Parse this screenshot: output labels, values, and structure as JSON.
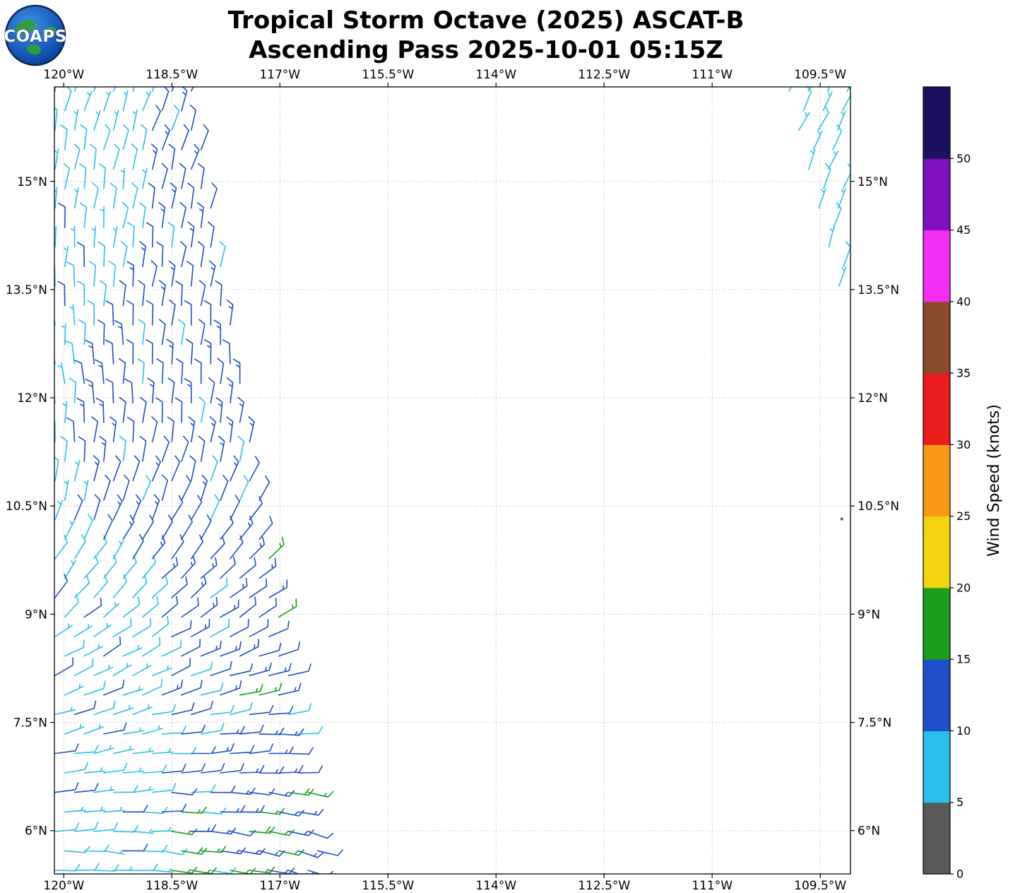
{
  "header": {
    "logo_text": "COAPS",
    "title_line1": "Tropical Storm Octave (2025) ASCAT-B",
    "title_line2": "Ascending Pass 2025-10-01 05:15Z"
  },
  "chart_data": {
    "type": "wind_barb_map",
    "title": "Tropical Storm Octave (2025) ASCAT-B",
    "subtitle": "Ascending Pass 2025-10-01 05:15Z",
    "lon_range": [
      -120.13,
      -109.08
    ],
    "lat_range": [
      5.4,
      16.31
    ],
    "x_ticks": [
      {
        "value": -120.0,
        "label": "120°W"
      },
      {
        "value": -118.5,
        "label": "118.5°W"
      },
      {
        "value": -117.0,
        "label": "117°W"
      },
      {
        "value": -115.5,
        "label": "115.5°W"
      },
      {
        "value": -114.0,
        "label": "114°W"
      },
      {
        "value": -112.5,
        "label": "112.5°W"
      },
      {
        "value": -111.0,
        "label": "111°W"
      },
      {
        "value": -109.5,
        "label": "109.5°W"
      }
    ],
    "y_ticks": [
      {
        "value": 6.0,
        "label": "6°N"
      },
      {
        "value": 7.5,
        "label": "7.5°N"
      },
      {
        "value": 9.0,
        "label": "9°N"
      },
      {
        "value": 10.5,
        "label": "10.5°N"
      },
      {
        "value": 12.0,
        "label": "12°N"
      },
      {
        "value": 13.5,
        "label": "13.5°N"
      },
      {
        "value": 15.0,
        "label": "15°N"
      }
    ],
    "labels_on_both_sides": true,
    "grid": {
      "show": true,
      "color": "#bcbcbc",
      "dash": "1.5 3"
    },
    "colorbar": {
      "label": "Wind Speed (knots)",
      "tick_values": [
        0,
        5,
        10,
        15,
        20,
        25,
        30,
        35,
        40,
        45,
        50
      ],
      "value_max": 55,
      "segments": [
        {
          "range": [
            0,
            5
          ],
          "color": "#595959"
        },
        {
          "range": [
            5,
            10
          ],
          "color": "#29bfec"
        },
        {
          "range": [
            10,
            15
          ],
          "color": "#1d4fc8"
        },
        {
          "range": [
            15,
            20
          ],
          "color": "#1b9e1b"
        },
        {
          "range": [
            20,
            25
          ],
          "color": "#f2d411"
        },
        {
          "range": [
            25,
            30
          ],
          "color": "#f79a17"
        },
        {
          "range": [
            30,
            35
          ],
          "color": "#ea1c1c"
        },
        {
          "range": [
            35,
            40
          ],
          "color": "#8a4a2e"
        },
        {
          "range": [
            40,
            45
          ],
          "color": "#f22ef2"
        },
        {
          "range": [
            45,
            50
          ],
          "color": "#7e10c0"
        },
        {
          "range": [
            50,
            55
          ],
          "color": "#1e1060"
        }
      ]
    },
    "speed_colors": [
      {
        "max_knots": 5,
        "color": "#595959"
      },
      {
        "max_knots": 10,
        "color": "#29bfec"
      },
      {
        "max_knots": 15,
        "color": "#1d4fc8"
      },
      {
        "max_knots": 20,
        "color": "#1b9e1b"
      }
    ],
    "barb_style": {
      "staff_len": 29,
      "stroke_width": 1.6,
      "full_barb_len": 10.5,
      "half_barb_len": 5.5,
      "barb_spacing": 6,
      "barb_angle_deg": 60,
      "full_barb_knots": 10,
      "half_barb_knots": 5
    },
    "wind_field": {
      "direction_from_by_lat": [
        [
          5.5,
          100
        ],
        [
          6.5,
          92
        ],
        [
          7.5,
          80
        ],
        [
          8.5,
          64
        ],
        [
          9.5,
          44
        ],
        [
          10.5,
          24
        ],
        [
          11.5,
          8
        ],
        [
          12.5,
          2
        ],
        [
          13.5,
          8
        ],
        [
          15.0,
          14
        ],
        [
          16.3,
          22
        ]
      ],
      "direction_lon_coeff": 4,
      "direction_lon_ref": -118.3,
      "direction_lon_clamp": 8,
      "direction_noise_deg": 7,
      "speed_base_knots": 11.8,
      "cyan_band_boost_knots": -3.6,
      "cyan_band_east_boundary_by_lat": [
        [
          5.5,
          -118.55
        ],
        [
          8.0,
          -118.65
        ],
        [
          9.3,
          -118.75
        ],
        [
          10.0,
          -119.55
        ],
        [
          12.0,
          -119.85
        ],
        [
          13.0,
          -119.35
        ],
        [
          14.0,
          -118.85
        ],
        [
          16.3,
          -118.7
        ]
      ],
      "speed_noise_knots": 2.2,
      "speed_noise_south_knots": 3.4,
      "noisy_below_lat": 8.7,
      "speed_clamp": [
        5.2,
        19
      ],
      "green_patches": [
        {
          "lon": -116.95,
          "lat": 9.7,
          "sigma_lon": 0.22,
          "sigma_lat": 0.5,
          "amp_knots": 6
        },
        {
          "lon": -117.15,
          "lat": 6.05,
          "sigma_lon": 0.38,
          "sigma_lat": 0.55,
          "amp_knots": 6
        },
        {
          "lon": -118.35,
          "lat": 5.8,
          "sigma_lon": 0.18,
          "sigma_lat": 0.25,
          "amp_knots": 5
        },
        {
          "lon": -117.3,
          "lat": 8.15,
          "sigma_lon": 0.15,
          "sigma_lat": 0.2,
          "amp_knots": 4.5
        }
      ]
    },
    "swaths": [
      {
        "name": "left",
        "lat_min": 5.45,
        "lat_max": 16.25,
        "row_step": 0.27,
        "col_step": 0.27,
        "west_lon": -120.12,
        "east_edge_by_lat": [
          [
            5.5,
            -116.42
          ],
          [
            16.3,
            -118.2
          ]
        ],
        "stagger_lon": 0.135,
        "speed_offset_knots": 0
      },
      {
        "name": "right",
        "lat_min": 13.55,
        "lat_max": 16.25,
        "row_step": 0.27,
        "col_step": 0.27,
        "west_edge_by_lat": [
          [
            13.55,
            -109.24
          ],
          [
            16.3,
            -109.95
          ]
        ],
        "east_lon": -109.12,
        "stagger_lon": 0.135,
        "speed_offset_knots": -4.5
      }
    ],
    "stray_points": [
      {
        "lon": -109.2,
        "lat": 10.32
      }
    ]
  }
}
